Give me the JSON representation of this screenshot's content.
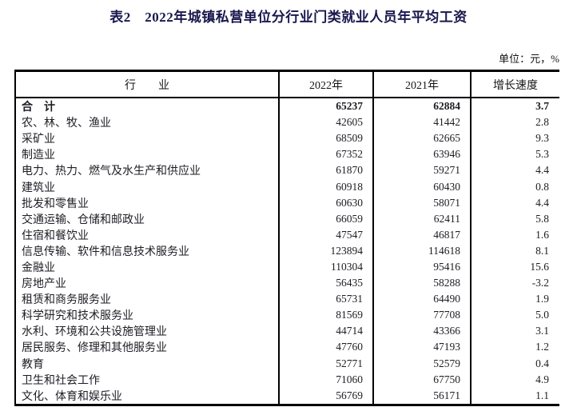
{
  "page": {
    "title": "表2　2022年城镇私营单位分行业门类就业人员年平均工资",
    "unit_note": "单位：元，%"
  },
  "colors": {
    "title_text": "#18184e",
    "body_text": "#1d1d24",
    "border": "#000000",
    "background": "#ffffff"
  },
  "table": {
    "headers": [
      "行　　业",
      "2022年",
      "2021年",
      "增长速度"
    ],
    "rows": [
      {
        "industry": "合　计",
        "y2022": "65237",
        "y2021": "62884",
        "growth": "3.7"
      },
      {
        "industry": "农、林、牧、渔业",
        "y2022": "42605",
        "y2021": "41442",
        "growth": "2.8"
      },
      {
        "industry": "采矿业",
        "y2022": "68509",
        "y2021": "62665",
        "growth": "9.3"
      },
      {
        "industry": "制造业",
        "y2022": "67352",
        "y2021": "63946",
        "growth": "5.3"
      },
      {
        "industry": "电力、热力、燃气及水生产和供应业",
        "y2022": "61870",
        "y2021": "59271",
        "growth": "4.4"
      },
      {
        "industry": "建筑业",
        "y2022": "60918",
        "y2021": "60430",
        "growth": "0.8"
      },
      {
        "industry": "批发和零售业",
        "y2022": "60630",
        "y2021": "58071",
        "growth": "4.4"
      },
      {
        "industry": "交通运输、仓储和邮政业",
        "y2022": "66059",
        "y2021": "62411",
        "growth": "5.8"
      },
      {
        "industry": "住宿和餐饮业",
        "y2022": "47547",
        "y2021": "46817",
        "growth": "1.6"
      },
      {
        "industry": "信息传输、软件和信息技术服务业",
        "y2022": "123894",
        "y2021": "114618",
        "growth": "8.1"
      },
      {
        "industry": "金融业",
        "y2022": "110304",
        "y2021": "95416",
        "growth": "15.6"
      },
      {
        "industry": "房地产业",
        "y2022": "56435",
        "y2021": "58288",
        "growth": "-3.2"
      },
      {
        "industry": "租赁和商务服务业",
        "y2022": "65731",
        "y2021": "64490",
        "growth": "1.9"
      },
      {
        "industry": "科学研究和技术服务业",
        "y2022": "81569",
        "y2021": "77708",
        "growth": "5.0"
      },
      {
        "industry": "水利、环境和公共设施管理业",
        "y2022": "44714",
        "y2021": "43366",
        "growth": "3.1"
      },
      {
        "industry": "居民服务、修理和其他服务业",
        "y2022": "47760",
        "y2021": "47193",
        "growth": "1.2"
      },
      {
        "industry": "教育",
        "y2022": "52771",
        "y2021": "52579",
        "growth": "0.4"
      },
      {
        "industry": "卫生和社会工作",
        "y2022": "71060",
        "y2021": "67750",
        "growth": "4.9"
      },
      {
        "industry": "文化、体育和娱乐业",
        "y2022": "56769",
        "y2021": "56171",
        "growth": "1.1"
      }
    ]
  }
}
